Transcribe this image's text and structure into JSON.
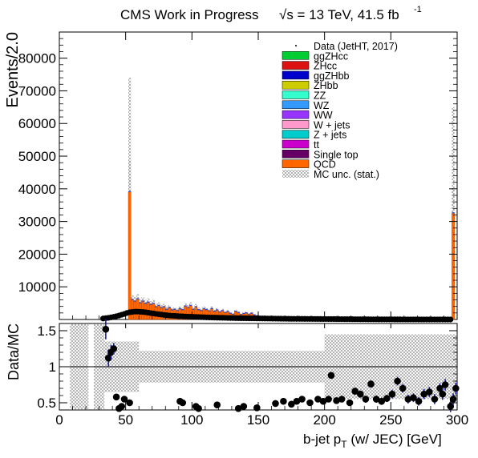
{
  "header": {
    "title": "CMS Work in Progress",
    "energy_label": "√s = 13 TeV, 41.5 fb",
    "lumi_exponent": "-1"
  },
  "legend": [
    {
      "label": "Data (JetHT, 2017)",
      "style": "dot",
      "color": "#000000"
    },
    {
      "label": "ggZHcc",
      "style": "box",
      "color": "#00cc33"
    },
    {
      "label": "ZHcc",
      "style": "box",
      "color": "#dd1111"
    },
    {
      "label": "ggZHbb",
      "style": "box",
      "color": "#0000cc"
    },
    {
      "label": "ZHbb",
      "style": "box",
      "color": "#cccc00"
    },
    {
      "label": "ZZ",
      "style": "box",
      "color": "#33ffcc"
    },
    {
      "label": "WZ",
      "style": "box",
      "color": "#3399ff"
    },
    {
      "label": "WW",
      "style": "box",
      "color": "#9933ff"
    },
    {
      "label": "W + jets",
      "style": "box",
      "color": "#ff99cc"
    },
    {
      "label": "Z + jets",
      "style": "box",
      "color": "#00cccc"
    },
    {
      "label": "tt",
      "style": "box",
      "color": "#cc00cc"
    },
    {
      "label": "Single top",
      "style": "box",
      "color": "#660066"
    },
    {
      "label": "QCD",
      "style": "box",
      "color": "#ff6600"
    },
    {
      "label": "MC unc. (stat.)",
      "style": "hatch",
      "color": "#888888"
    }
  ],
  "chart_data": {
    "type": "bar",
    "xlabel": "b-jet p",
    "xlabel_sub": "T",
    "xlabel_suffix": "(w/ JEC) [GeV]",
    "xlim": [
      0,
      300
    ],
    "x_ticks": [
      0,
      50,
      100,
      150,
      200,
      250,
      300
    ],
    "bin_width": 2,
    "main": {
      "ylabel": "Events/2.0",
      "ylim": [
        0,
        88000
      ],
      "y_ticks": [
        10000,
        20000,
        30000,
        40000,
        50000,
        60000,
        70000,
        80000
      ],
      "mc_total": [
        [
          53,
          39000
        ],
        [
          297,
          32500
        ],
        [
          55,
          6000
        ],
        [
          57,
          5500
        ],
        [
          59,
          6200
        ],
        [
          61,
          5000
        ],
        [
          63,
          5500
        ],
        [
          65,
          4800
        ],
        [
          67,
          5200
        ],
        [
          69,
          4500
        ],
        [
          71,
          4800
        ],
        [
          73,
          3800
        ],
        [
          75,
          4200
        ],
        [
          77,
          3500
        ],
        [
          79,
          3800
        ],
        [
          81,
          3000
        ],
        [
          83,
          3500
        ],
        [
          85,
          2800
        ],
        [
          87,
          3000
        ],
        [
          89,
          2600
        ],
        [
          91,
          3200
        ],
        [
          93,
          2900
        ],
        [
          95,
          4000
        ],
        [
          97,
          3500
        ],
        [
          99,
          4200
        ],
        [
          101,
          3000
        ],
        [
          103,
          3800
        ],
        [
          105,
          2900
        ],
        [
          107,
          2600
        ],
        [
          109,
          3200
        ],
        [
          111,
          2900
        ],
        [
          113,
          2500
        ],
        [
          115,
          3200
        ],
        [
          117,
          2400
        ],
        [
          119,
          2800
        ],
        [
          121,
          2200
        ],
        [
          123,
          2600
        ],
        [
          125,
          2000
        ],
        [
          127,
          2300
        ],
        [
          129,
          1800
        ],
        [
          131,
          1500
        ],
        [
          133,
          2400
        ],
        [
          135,
          2000
        ],
        [
          137,
          1400
        ],
        [
          139,
          1700
        ],
        [
          141,
          1900
        ],
        [
          143,
          1500
        ],
        [
          145,
          1800
        ],
        [
          147,
          1300
        ],
        [
          149,
          1000
        ],
        [
          151,
          900
        ],
        [
          153,
          800
        ],
        [
          155,
          850
        ],
        [
          157,
          700
        ],
        [
          159,
          750
        ],
        [
          161,
          700
        ],
        [
          163,
          650
        ],
        [
          165,
          600
        ]
      ],
      "data_points": [
        [
          33,
          300
        ],
        [
          35,
          400
        ],
        [
          37,
          500
        ],
        [
          39,
          650
        ],
        [
          41,
          800
        ],
        [
          43,
          1000
        ],
        [
          45,
          1200
        ],
        [
          47,
          1450
        ],
        [
          49,
          1700
        ],
        [
          51,
          2000
        ],
        [
          53,
          2200
        ],
        [
          55,
          2300
        ],
        [
          57,
          2400
        ],
        [
          59,
          2400
        ],
        [
          61,
          2350
        ],
        [
          63,
          2300
        ],
        [
          65,
          2200
        ],
        [
          67,
          2100
        ],
        [
          69,
          1950
        ],
        [
          71,
          1850
        ],
        [
          73,
          1700
        ],
        [
          75,
          1600
        ],
        [
          77,
          1500
        ],
        [
          79,
          1400
        ],
        [
          81,
          1300
        ],
        [
          83,
          1200
        ],
        [
          85,
          1150
        ],
        [
          87,
          1100
        ],
        [
          89,
          1050
        ],
        [
          91,
          1000
        ],
        [
          93,
          950
        ],
        [
          95,
          900
        ],
        [
          97,
          870
        ],
        [
          99,
          840
        ],
        [
          101,
          800
        ],
        [
          103,
          770
        ],
        [
          105,
          740
        ],
        [
          107,
          710
        ],
        [
          109,
          680
        ],
        [
          111,
          650
        ],
        [
          113,
          620
        ],
        [
          115,
          600
        ],
        [
          117,
          580
        ],
        [
          119,
          560
        ],
        [
          121,
          540
        ],
        [
          123,
          520
        ],
        [
          125,
          500
        ],
        [
          127,
          480
        ],
        [
          129,
          460
        ],
        [
          131,
          440
        ],
        [
          133,
          420
        ],
        [
          135,
          400
        ],
        [
          137,
          390
        ],
        [
          139,
          380
        ],
        [
          141,
          370
        ],
        [
          143,
          360
        ],
        [
          145,
          350
        ],
        [
          147,
          340
        ],
        [
          149,
          330
        ],
        [
          151,
          320
        ],
        [
          153,
          310
        ],
        [
          155,
          300
        ],
        [
          157,
          290
        ],
        [
          159,
          280
        ],
        [
          161,
          270
        ],
        [
          163,
          260
        ],
        [
          165,
          250
        ],
        [
          167,
          240
        ],
        [
          169,
          230
        ],
        [
          171,
          220
        ],
        [
          173,
          210
        ],
        [
          175,
          200
        ],
        [
          177,
          195
        ],
        [
          179,
          190
        ],
        [
          181,
          185
        ],
        [
          183,
          180
        ],
        [
          185,
          175
        ],
        [
          187,
          170
        ],
        [
          189,
          165
        ],
        [
          191,
          160
        ],
        [
          193,
          155
        ],
        [
          195,
          150
        ],
        [
          197,
          145
        ],
        [
          199,
          140
        ],
        [
          201,
          135
        ],
        [
          203,
          130
        ],
        [
          205,
          125
        ],
        [
          207,
          120
        ],
        [
          209,
          115
        ],
        [
          211,
          110
        ],
        [
          213,
          105
        ],
        [
          215,
          100
        ],
        [
          217,
          95
        ],
        [
          219,
          90
        ],
        [
          221,
          85
        ],
        [
          223,
          80
        ],
        [
          225,
          75
        ],
        [
          227,
          70
        ],
        [
          229,
          65
        ],
        [
          231,
          60
        ],
        [
          233,
          55
        ],
        [
          235,
          50
        ],
        [
          237,
          45
        ],
        [
          239,
          40
        ],
        [
          241,
          38
        ],
        [
          243,
          36
        ],
        [
          245,
          34
        ],
        [
          247,
          32
        ],
        [
          249,
          30
        ],
        [
          251,
          28
        ],
        [
          253,
          26
        ],
        [
          255,
          24
        ],
        [
          257,
          22
        ],
        [
          259,
          20
        ],
        [
          261,
          18
        ],
        [
          263,
          16
        ],
        [
          265,
          14
        ],
        [
          267,
          12
        ],
        [
          269,
          10
        ],
        [
          271,
          9
        ],
        [
          273,
          8
        ],
        [
          275,
          7
        ],
        [
          277,
          6
        ],
        [
          279,
          5
        ],
        [
          281,
          4
        ],
        [
          283,
          3
        ],
        [
          285,
          2
        ],
        [
          287,
          2
        ],
        [
          289,
          1
        ],
        [
          291,
          1
        ],
        [
          293,
          1
        ],
        [
          295,
          1
        ]
      ],
      "unc_spikes": [
        [
          53,
          74000
        ],
        [
          297,
          65000
        ]
      ]
    },
    "ratio": {
      "ylabel": "Data/MC",
      "ylim": [
        0.4,
        1.6
      ],
      "y_ticks": [
        0.5,
        1.0,
        1.5
      ],
      "y_tick_labels": [
        "0.5",
        "1",
        "1.5"
      ],
      "reference_line": 1.0,
      "points": [
        [
          35,
          1.52,
          0.14
        ],
        [
          37,
          1.12,
          0.12
        ],
        [
          39,
          1.2,
          0.1
        ],
        [
          41,
          1.25,
          0.08
        ],
        [
          43,
          0.58,
          0.02
        ],
        [
          45,
          0.42,
          0.02
        ],
        [
          47,
          0.45,
          0.02
        ],
        [
          49,
          0.55,
          0.02
        ],
        [
          53,
          0.5,
          0.01
        ],
        [
          91,
          0.52,
          0.02
        ],
        [
          93,
          0.5,
          0.02
        ],
        [
          103,
          0.45,
          0.02
        ],
        [
          105,
          0.42,
          0.02
        ],
        [
          119,
          0.47,
          0.02
        ],
        [
          135,
          0.42,
          0.02
        ],
        [
          139,
          0.45,
          0.02
        ],
        [
          149,
          0.43,
          0.02
        ],
        [
          163,
          0.49,
          0.03
        ],
        [
          169,
          0.52,
          0.03
        ],
        [
          175,
          0.48,
          0.03
        ],
        [
          179,
          0.52,
          0.03
        ],
        [
          183,
          0.55,
          0.03
        ],
        [
          189,
          0.5,
          0.03
        ],
        [
          195,
          0.55,
          0.03
        ],
        [
          199,
          0.52,
          0.03
        ],
        [
          203,
          0.55,
          0.04
        ],
        [
          205,
          0.88,
          0.04
        ],
        [
          209,
          0.53,
          0.04
        ],
        [
          213,
          0.55,
          0.04
        ],
        [
          219,
          0.5,
          0.04
        ],
        [
          223,
          0.66,
          0.05
        ],
        [
          227,
          0.62,
          0.05
        ],
        [
          231,
          0.55,
          0.05
        ],
        [
          235,
          0.76,
          0.05
        ],
        [
          239,
          0.55,
          0.05
        ],
        [
          243,
          0.52,
          0.05
        ],
        [
          247,
          0.56,
          0.05
        ],
        [
          251,
          0.62,
          0.06
        ],
        [
          255,
          0.8,
          0.06
        ],
        [
          259,
          0.7,
          0.06
        ],
        [
          263,
          0.55,
          0.06
        ],
        [
          267,
          0.57,
          0.06
        ],
        [
          271,
          0.52,
          0.06
        ],
        [
          275,
          0.62,
          0.07
        ],
        [
          279,
          0.65,
          0.07
        ],
        [
          283,
          0.55,
          0.07
        ],
        [
          287,
          0.7,
          0.07
        ],
        [
          289,
          0.62,
          0.08
        ],
        [
          291,
          0.75,
          0.08
        ],
        [
          295,
          0.45,
          0.08
        ],
        [
          297,
          0.55,
          0.08
        ],
        [
          299,
          0.7,
          0.08
        ]
      ],
      "band_halfwidth_default": 0.6
    }
  }
}
